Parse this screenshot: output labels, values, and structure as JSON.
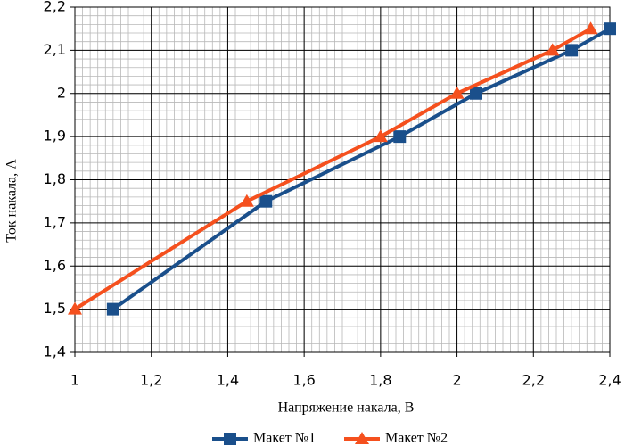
{
  "chart_data": {
    "type": "line",
    "xlabel": "Напряжение накала, В",
    "ylabel": "Ток накала, А",
    "xlim": [
      1,
      2.4
    ],
    "xticks": [
      1,
      {
        "value": 1.2,
        "label": "1,2"
      },
      {
        "value": 1.4,
        "label": "1,4"
      },
      {
        "value": 1.6,
        "label": "1,6"
      },
      {
        "value": 1.8,
        "label": "1,8"
      },
      2,
      {
        "value": 2.2,
        "label": "2,2"
      },
      {
        "value": 2.4,
        "label": "2,4"
      }
    ],
    "ylim": [
      1.4,
      2.2
    ],
    "yticks": [
      {
        "value": 1.4,
        "label": "1,4"
      },
      {
        "value": 1.5,
        "label": "1,5"
      },
      {
        "value": 1.6,
        "label": "1,6"
      },
      {
        "value": 1.7,
        "label": "1,7"
      },
      {
        "value": 1.8,
        "label": "1,8"
      },
      {
        "value": 1.9,
        "label": "1,9"
      },
      2,
      {
        "value": 2.1,
        "label": "2,1"
      },
      {
        "value": 2.2,
        "label": "2,2"
      }
    ],
    "grid": true,
    "legend": "bottom",
    "series": [
      {
        "name": "Макет №1",
        "color": "#1a4f8b",
        "marker": "square",
        "x": [
          1.1,
          1.5,
          1.85,
          2.05,
          2.3,
          2.4
        ],
        "values": [
          1.5,
          1.75,
          1.9,
          2.0,
          2.1,
          2.15
        ]
      },
      {
        "name": "Макет №2",
        "color": "#f5501e",
        "marker": "triangle",
        "x": [
          1.0,
          1.45,
          1.8,
          2.0,
          2.25,
          2.35
        ],
        "values": [
          1.5,
          1.75,
          1.9,
          2.0,
          2.1,
          2.15
        ]
      }
    ]
  }
}
